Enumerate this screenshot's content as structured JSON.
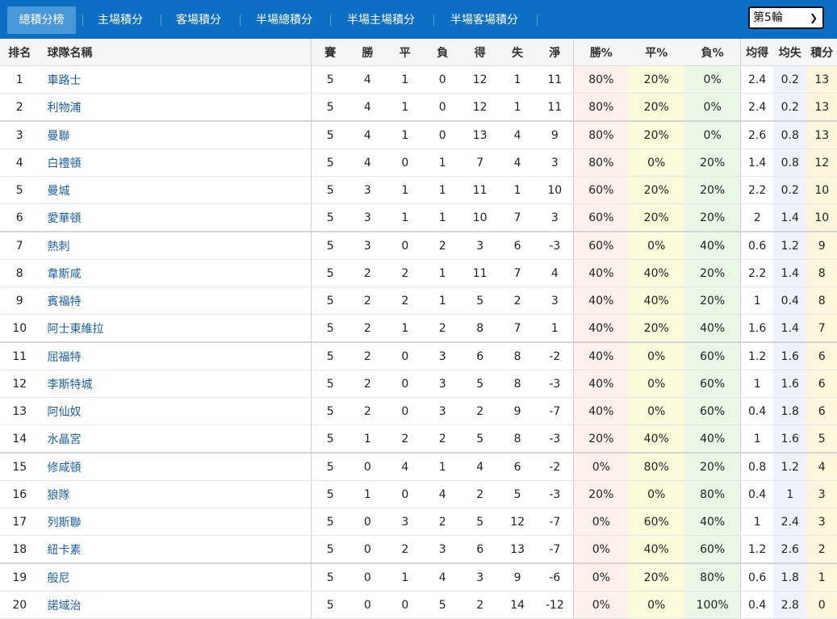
{
  "tabs": [
    {
      "label": "總積分榜"
    },
    {
      "label": "主場積分"
    },
    {
      "label": "客場積分"
    },
    {
      "label": "半場總積分"
    },
    {
      "label": "半場主場積分"
    },
    {
      "label": "半場客場積分"
    }
  ],
  "round_select": {
    "value": "第5輪"
  },
  "columns": [
    "排名",
    "球隊名稱",
    "賽",
    "勝",
    "平",
    "負",
    "得",
    "失",
    "淨",
    "勝%",
    "平%",
    "負%",
    "均得",
    "均失",
    "積分"
  ],
  "rows": [
    [
      "1",
      "車路士",
      "5",
      "4",
      "1",
      "0",
      "12",
      "1",
      "11",
      "80%",
      "20%",
      "0%",
      "2.4",
      "0.2",
      "13"
    ],
    [
      "2",
      "利物浦",
      "5",
      "4",
      "1",
      "0",
      "12",
      "1",
      "11",
      "80%",
      "20%",
      "0%",
      "2.4",
      "0.2",
      "13"
    ],
    [
      "3",
      "曼聯",
      "5",
      "4",
      "1",
      "0",
      "13",
      "4",
      "9",
      "80%",
      "20%",
      "0%",
      "2.6",
      "0.8",
      "13"
    ],
    [
      "4",
      "白禮頓",
      "5",
      "4",
      "0",
      "1",
      "7",
      "4",
      "3",
      "80%",
      "0%",
      "20%",
      "1.4",
      "0.8",
      "12"
    ],
    [
      "5",
      "曼城",
      "5",
      "3",
      "1",
      "1",
      "11",
      "1",
      "10",
      "60%",
      "20%",
      "20%",
      "2.2",
      "0.2",
      "10"
    ],
    [
      "6",
      "愛華頓",
      "5",
      "3",
      "1",
      "1",
      "10",
      "7",
      "3",
      "60%",
      "20%",
      "20%",
      "2",
      "1.4",
      "10"
    ],
    [
      "7",
      "熱刺",
      "5",
      "3",
      "0",
      "2",
      "3",
      "6",
      "-3",
      "60%",
      "0%",
      "40%",
      "0.6",
      "1.2",
      "9"
    ],
    [
      "8",
      "韋斯咸",
      "5",
      "2",
      "2",
      "1",
      "11",
      "7",
      "4",
      "40%",
      "40%",
      "20%",
      "2.2",
      "1.4",
      "8"
    ],
    [
      "9",
      "賓福特",
      "5",
      "2",
      "2",
      "1",
      "5",
      "2",
      "3",
      "40%",
      "40%",
      "20%",
      "1",
      "0.4",
      "8"
    ],
    [
      "10",
      "阿士東維拉",
      "5",
      "2",
      "1",
      "2",
      "8",
      "7",
      "1",
      "40%",
      "20%",
      "40%",
      "1.6",
      "1.4",
      "7"
    ],
    [
      "11",
      "屈福特",
      "5",
      "2",
      "0",
      "3",
      "6",
      "8",
      "-2",
      "40%",
      "0%",
      "60%",
      "1.2",
      "1.6",
      "6"
    ],
    [
      "12",
      "李斯特城",
      "5",
      "2",
      "0",
      "3",
      "5",
      "8",
      "-3",
      "40%",
      "0%",
      "60%",
      "1",
      "1.6",
      "6"
    ],
    [
      "13",
      "阿仙奴",
      "5",
      "2",
      "0",
      "3",
      "2",
      "9",
      "-7",
      "40%",
      "0%",
      "60%",
      "0.4",
      "1.8",
      "6"
    ],
    [
      "14",
      "水晶宮",
      "5",
      "1",
      "2",
      "2",
      "5",
      "8",
      "-3",
      "20%",
      "40%",
      "40%",
      "1",
      "1.6",
      "5"
    ],
    [
      "15",
      "修咸頓",
      "5",
      "0",
      "4",
      "1",
      "4",
      "6",
      "-2",
      "0%",
      "80%",
      "20%",
      "0.8",
      "1.2",
      "4"
    ],
    [
      "16",
      "狼隊",
      "5",
      "1",
      "0",
      "4",
      "2",
      "5",
      "-3",
      "20%",
      "0%",
      "80%",
      "0.4",
      "1",
      "3"
    ],
    [
      "17",
      "列斯聯",
      "5",
      "0",
      "3",
      "2",
      "5",
      "12",
      "-7",
      "0%",
      "60%",
      "40%",
      "1",
      "2.4",
      "3"
    ],
    [
      "18",
      "紐卡素",
      "5",
      "0",
      "2",
      "3",
      "6",
      "13",
      "-7",
      "0%",
      "40%",
      "60%",
      "1.2",
      "2.6",
      "2"
    ],
    [
      "19",
      "般尼",
      "5",
      "0",
      "1",
      "4",
      "3",
      "9",
      "-6",
      "0%",
      "20%",
      "80%",
      "0.6",
      "1.8",
      "1"
    ],
    [
      "20",
      "諾域治",
      "5",
      "0",
      "0",
      "5",
      "2",
      "14",
      "-12",
      "0%",
      "0%",
      "100%",
      "0.4",
      "2.8",
      "0"
    ]
  ],
  "colors": {
    "topbar": "#0d6fc4",
    "active_tab": "#4a97d9",
    "team_link": "#1a5fa8",
    "win_bg": "#fdf0ec",
    "draw_bg": "#fbfbdc",
    "loss_bg": "#eaf6e6",
    "avg_bg": "#eef3fb",
    "pts_bg": "#fdf6dc"
  }
}
